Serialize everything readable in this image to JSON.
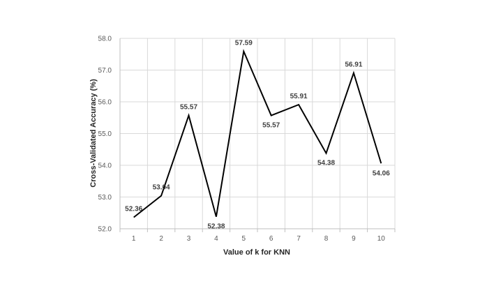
{
  "chart_data": {
    "type": "line",
    "title": "",
    "xlabel": "Value of k for KNN",
    "ylabel": "Cross-Validated Accuracy (%)",
    "x": [
      1,
      2,
      3,
      4,
      5,
      6,
      7,
      8,
      9,
      10
    ],
    "y_tick_labels": [
      "52.0",
      "53.0",
      "54.0",
      "55.0",
      "56.0",
      "57.0",
      "58.0"
    ],
    "ylim": [
      52.0,
      58.0
    ],
    "grid": "horizontal",
    "series": [
      {
        "values": [
          52.36,
          53.04,
          55.57,
          52.38,
          57.59,
          55.57,
          55.91,
          54.38,
          56.91,
          54.06
        ],
        "labels": [
          "52.36",
          "53.04",
          "55.57",
          "52.38",
          "57.59",
          "55.57",
          "55.91",
          "54.38",
          "56.91",
          "54.06"
        ],
        "color": "#000000"
      }
    ],
    "colors": {
      "grid": "#d9d9d9",
      "axis": "#bfbfbf",
      "line": "#000000"
    }
  }
}
